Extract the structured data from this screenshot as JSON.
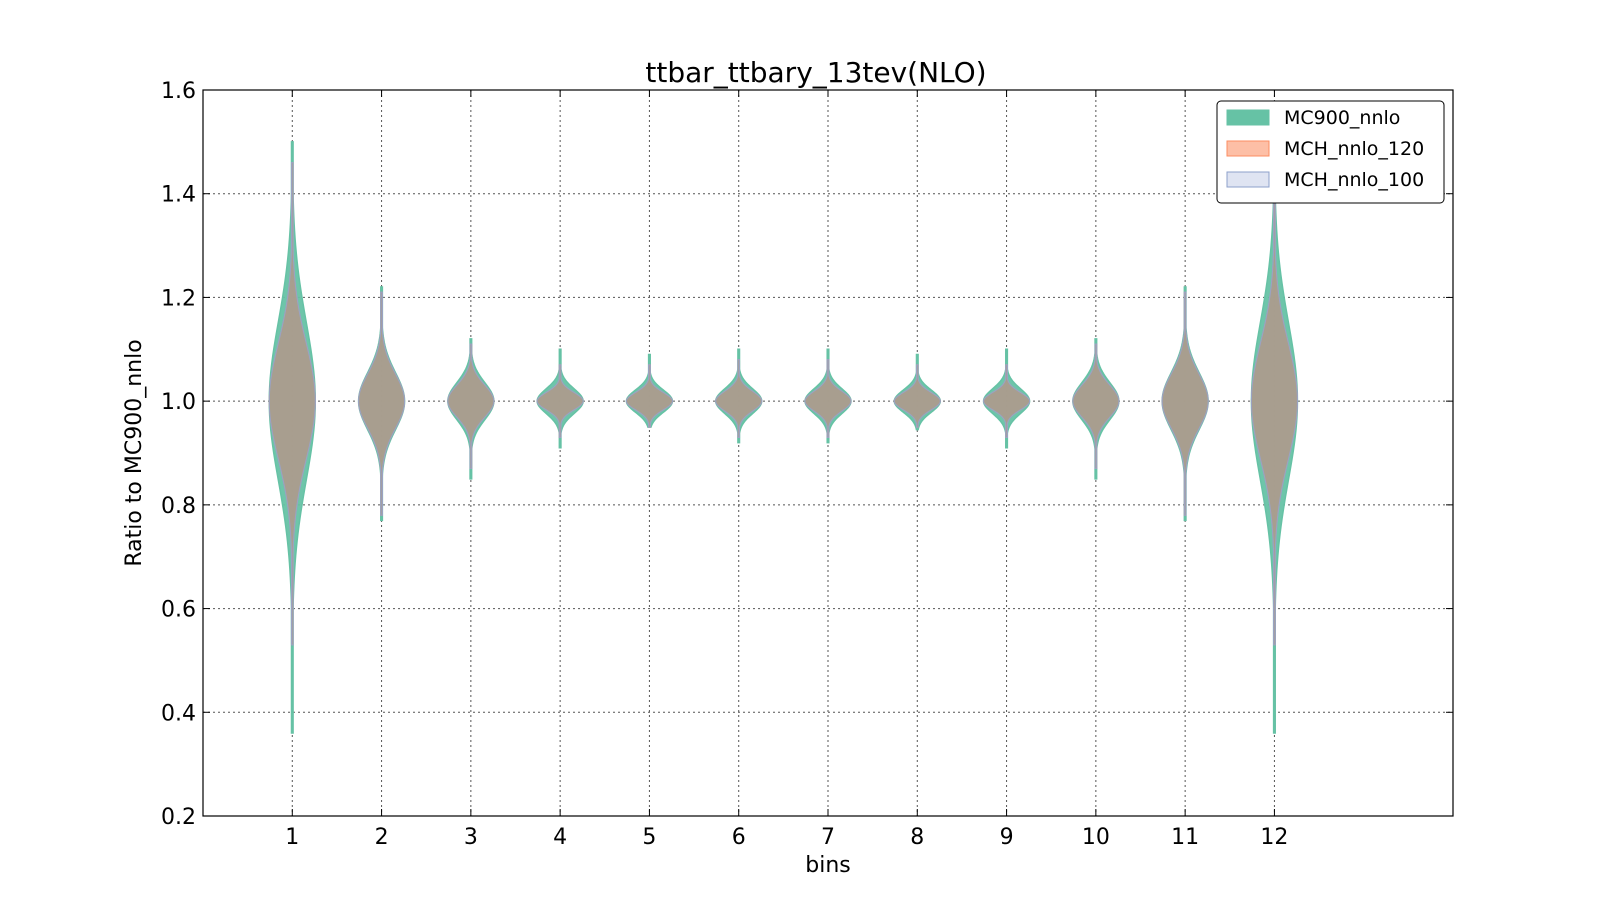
{
  "chart_data": {
    "type": "violin",
    "title": "ttbar_ttbary_13tev(NLO)",
    "xlabel": "bins",
    "ylabel": "Ratio to MC900_nnlo",
    "categories": [
      "1",
      "2",
      "3",
      "4",
      "5",
      "6",
      "7",
      "8",
      "9",
      "10",
      "11",
      "12"
    ],
    "xlim": [
      0,
      14
    ],
    "ylim": [
      0.2,
      1.6
    ],
    "yticks": [
      "0.2",
      "0.4",
      "0.6",
      "0.8",
      "1.0",
      "1.2",
      "1.4",
      "1.6"
    ],
    "grid": true,
    "legend_position": "top-right",
    "series": [
      {
        "name": "MC900_nnlo",
        "color": "#66c2a5",
        "center": [
          1.0,
          1.0,
          1.0,
          1.0,
          1.0,
          1.0,
          1.0,
          1.0,
          1.0,
          1.0,
          1.0,
          1.0
        ],
        "min": [
          0.36,
          0.77,
          0.85,
          0.91,
          0.95,
          0.92,
          0.92,
          0.945,
          0.91,
          0.85,
          0.77,
          0.36
        ],
        "max": [
          1.5,
          1.22,
          1.12,
          1.1,
          1.09,
          1.1,
          1.1,
          1.09,
          1.1,
          1.12,
          1.22,
          1.5
        ]
      },
      {
        "name": "MCH_nnlo_120",
        "color": "#fc8d62",
        "center": [
          1.0,
          1.0,
          1.0,
          1.0,
          1.0,
          1.0,
          1.0,
          1.0,
          1.0,
          1.0,
          1.0,
          1.0
        ],
        "min": [
          0.53,
          0.78,
          0.87,
          0.93,
          0.95,
          0.93,
          0.93,
          0.95,
          0.93,
          0.87,
          0.78,
          0.53
        ],
        "max": [
          1.46,
          1.21,
          1.11,
          1.07,
          1.07,
          1.08,
          1.08,
          1.07,
          1.07,
          1.11,
          1.21,
          1.45
        ]
      },
      {
        "name": "MCH_nnlo_100",
        "color": "#8da0cb",
        "center": [
          1.0,
          1.0,
          1.0,
          1.0,
          1.0,
          1.0,
          1.0,
          1.0,
          1.0,
          1.0,
          1.0,
          1.0
        ],
        "min": [
          0.53,
          0.78,
          0.87,
          0.93,
          0.95,
          0.93,
          0.93,
          0.95,
          0.93,
          0.87,
          0.78,
          0.53
        ],
        "max": [
          1.46,
          1.21,
          1.11,
          1.07,
          1.07,
          1.08,
          1.08,
          1.07,
          1.07,
          1.11,
          1.21,
          1.45
        ]
      }
    ]
  }
}
